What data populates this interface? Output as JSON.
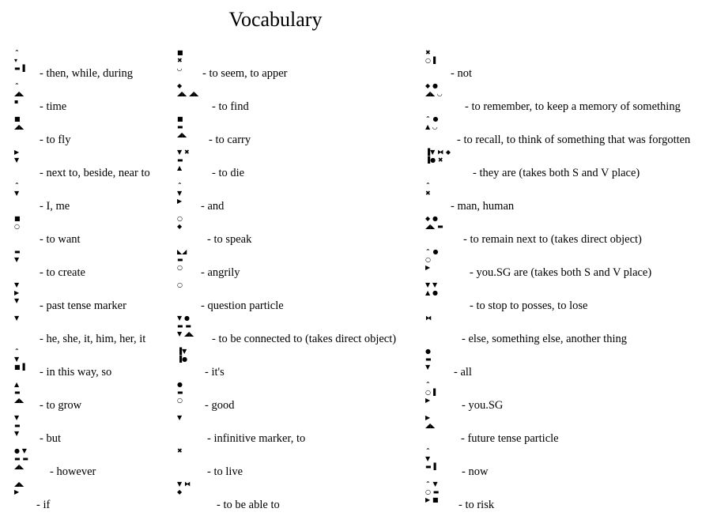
{
  "title": "Vocabulary",
  "columns": [
    [
      {
        "glyph": [
          "⌃",
          "▾",
          "▬▐"
        ],
        "gloss": "- then, while, during"
      },
      {
        "glyph": [
          "⌃",
          "◢◣",
          "▪"
        ],
        "gloss": "- time"
      },
      {
        "glyph": [
          "■",
          "◢◣"
        ],
        "gloss": "- to fly"
      },
      {
        "glyph": [
          "▶",
          "▼"
        ],
        "gloss": "- next to, beside, near to"
      },
      {
        "glyph": [
          "⌃",
          "▼"
        ],
        "gloss": "- I, me"
      },
      {
        "glyph": [
          "■",
          "○"
        ],
        "gloss": "- to want"
      },
      {
        "glyph": [
          "▬",
          "▼"
        ],
        "gloss": "- to create"
      },
      {
        "glyph": [
          "▼",
          "▶",
          "▼"
        ],
        "gloss": "- past tense marker"
      },
      {
        "glyph": [
          "▼"
        ],
        "gloss": "- he, she, it, him, her, it"
      },
      {
        "glyph": [
          "⌃",
          "▼",
          "■▐"
        ],
        "gloss": "- in this way, so"
      },
      {
        "glyph": [
          "▲",
          "▬",
          "◢◣"
        ],
        "gloss": "- to grow"
      },
      {
        "glyph": [
          "▼",
          "▬",
          "▼"
        ],
        "gloss": "- but"
      },
      {
        "glyph": [
          "● ▼",
          "▬ ▬",
          "◢◣"
        ],
        "gloss": "-  however"
      },
      {
        "glyph": [
          "◢◣",
          "▶"
        ],
        "gloss": "- if"
      }
    ],
    [
      {
        "glyph": [
          "■",
          "✖",
          "◡"
        ],
        "gloss": "- to seem, to apper"
      },
      {
        "glyph": [
          "   ◆",
          "◢◣ ◢◣"
        ],
        "gloss": "- to find"
      },
      {
        "glyph": [
          "■",
          "▬",
          "◢◣"
        ],
        "gloss": "- to carry"
      },
      {
        "glyph": [
          "▼ ✖",
          "▬",
          "▲"
        ],
        "gloss": "- to die"
      },
      {
        "glyph": [
          "⌃",
          "▼",
          "▶"
        ],
        "gloss": "-  and"
      },
      {
        "glyph": [
          "○",
          "◆"
        ],
        "gloss": "- to speak"
      },
      {
        "glyph": [
          "◣◢",
          "▬",
          "○"
        ],
        "gloss": "-  angrily"
      },
      {
        "glyph": [
          "○"
        ],
        "gloss": "-  question particle"
      },
      {
        "glyph": [
          "▼ ●",
          "▬ ▬",
          "▼ ◢◣"
        ],
        "gloss": "-  to be connected to (takes direct object)"
      },
      {
        "glyph": [
          "▐▼",
          "▐●"
        ],
        "gloss": "-  it's"
      },
      {
        "glyph": [
          "●",
          "▬",
          "○"
        ],
        "gloss": "- good"
      },
      {
        "glyph": [
          "▼"
        ],
        "gloss": "- infinitive marker, to"
      },
      {
        "glyph": [
          "✖"
        ],
        "gloss": "- to live"
      },
      {
        "glyph": [
          "▼ ⧓",
          "◆"
        ],
        "gloss": "- to be able to"
      }
    ],
    [
      {
        "glyph": [
          "✖",
          "○▐"
        ],
        "gloss": "- not"
      },
      {
        "glyph": [
          "◆ ●",
          "◢◣ ◡"
        ],
        "gloss": "- to remember, to keep a memory of something"
      },
      {
        "glyph": [
          "⌃ ●",
          "▲ ◡"
        ],
        "gloss": "- to recall, to think of something that was forgotten"
      },
      {
        "glyph": [
          "▐▼ ⧓ ◆",
          "▐● ✖"
        ],
        "gloss": "- they are (takes both S and V place)"
      },
      {
        "glyph": [
          "⌃",
          "✖"
        ],
        "gloss": "-  man, human"
      },
      {
        "glyph": [
          "◆ ●",
          "◢◣ ▬"
        ],
        "gloss": "- to remain next to (takes direct object)"
      },
      {
        "glyph": [
          "⌃ ●",
          "○",
          "▶"
        ],
        "gloss": "-  you.SG are (takes both S and V place)"
      },
      {
        "glyph": [
          "▼ ▼",
          "▲ ●"
        ],
        "gloss": "- to stop to posses, to lose"
      },
      {
        "glyph": [
          "⧓"
        ],
        "gloss": "-  else, something else, another thing"
      },
      {
        "glyph": [
          "●",
          "▬",
          "▼"
        ],
        "gloss": "- all"
      },
      {
        "glyph": [
          "⌃",
          "○▐",
          "▶"
        ],
        "gloss": "-  you.SG"
      },
      {
        "glyph": [
          "▶",
          "◢◣"
        ],
        "gloss": "-  future tense particle"
      },
      {
        "glyph": [
          "⌃",
          "▼",
          "▬▐"
        ],
        "gloss": "-  now"
      },
      {
        "glyph": [
          "⌃ ▼",
          "○ ▬",
          "▶ ■"
        ],
        "gloss": "- to risk"
      }
    ]
  ]
}
